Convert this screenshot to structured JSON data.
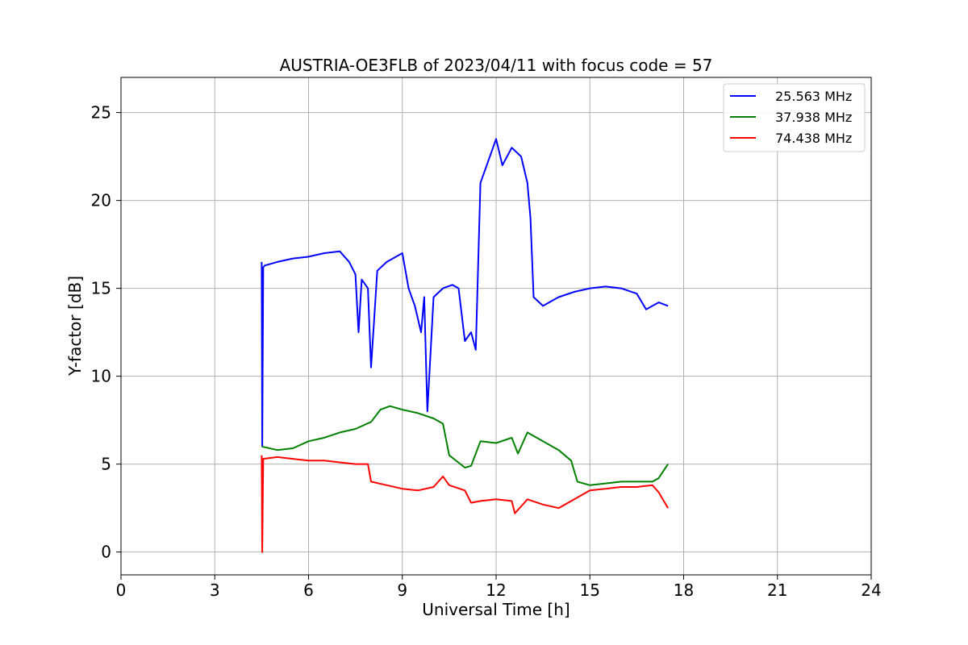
{
  "chart_data": {
    "type": "line",
    "title": "AUSTRIA-OE3FLB of 2023/04/11 with focus code = 57",
    "xlabel": "Universal Time [h]",
    "ylabel": "Y-factor [dB]",
    "xlim": [
      0,
      24
    ],
    "ylim": [
      -1.3,
      27
    ],
    "xticks": [
      0,
      3,
      6,
      9,
      12,
      15,
      18,
      21,
      24
    ],
    "yticks": [
      0,
      5,
      10,
      15,
      20,
      25
    ],
    "grid": true,
    "legend_position": "top-right",
    "series": [
      {
        "name": "25.563 MHz",
        "color": "#0000ff",
        "x": [
          4.5,
          4.52,
          4.55,
          4.6,
          5.0,
          5.5,
          6.0,
          6.5,
          7.0,
          7.3,
          7.5,
          7.6,
          7.7,
          7.9,
          8.0,
          8.2,
          8.5,
          8.8,
          9.0,
          9.2,
          9.4,
          9.6,
          9.7,
          9.8,
          10.0,
          10.3,
          10.6,
          10.8,
          11.0,
          11.2,
          11.35,
          11.5,
          11.8,
          12.0,
          12.2,
          12.5,
          12.8,
          13.0,
          13.1,
          13.2,
          13.5,
          14.0,
          14.5,
          15.0,
          15.5,
          16.0,
          16.5,
          16.8,
          17.0,
          17.2,
          17.5
        ],
        "y": [
          16.5,
          6.0,
          16.2,
          16.3,
          16.5,
          16.7,
          16.8,
          17.0,
          17.1,
          16.5,
          15.8,
          12.5,
          15.5,
          15.0,
          10.5,
          16.0,
          16.5,
          16.8,
          17.0,
          15.0,
          14.0,
          12.5,
          14.5,
          8.0,
          14.5,
          15.0,
          15.2,
          15.0,
          12.0,
          12.5,
          11.5,
          21.0,
          22.5,
          23.5,
          22.0,
          23.0,
          22.5,
          21.0,
          19.0,
          14.5,
          14.0,
          14.5,
          14.8,
          15.0,
          15.1,
          15.0,
          14.7,
          13.8,
          14.0,
          14.2,
          14.0
        ]
      },
      {
        "name": "37.938 MHz",
        "color": "#008000",
        "x": [
          4.5,
          5.0,
          5.5,
          6.0,
          6.5,
          7.0,
          7.5,
          8.0,
          8.3,
          8.6,
          9.0,
          9.5,
          10.0,
          10.3,
          10.5,
          11.0,
          11.2,
          11.5,
          12.0,
          12.5,
          12.7,
          13.0,
          13.3,
          13.6,
          14.0,
          14.4,
          14.6,
          15.0,
          15.5,
          16.0,
          16.5,
          17.0,
          17.2,
          17.5
        ],
        "y": [
          6.0,
          5.8,
          5.9,
          6.3,
          6.5,
          6.8,
          7.0,
          7.4,
          8.1,
          8.3,
          8.1,
          7.9,
          7.6,
          7.3,
          5.5,
          4.8,
          4.9,
          6.3,
          6.2,
          6.5,
          5.6,
          6.8,
          6.5,
          6.2,
          5.8,
          5.2,
          4.0,
          3.8,
          3.9,
          4.0,
          4.0,
          4.0,
          4.2,
          5.0
        ]
      },
      {
        "name": "74.438 MHz",
        "color": "#ff0000",
        "x": [
          4.5,
          4.52,
          4.55,
          5.0,
          5.5,
          6.0,
          6.5,
          7.0,
          7.5,
          7.9,
          8.0,
          8.5,
          9.0,
          9.5,
          10.0,
          10.3,
          10.5,
          11.0,
          11.2,
          11.5,
          12.0,
          12.5,
          12.6,
          13.0,
          13.5,
          14.0,
          14.5,
          15.0,
          15.5,
          16.0,
          16.5,
          17.0,
          17.2,
          17.5
        ],
        "y": [
          5.5,
          0.0,
          5.3,
          5.4,
          5.3,
          5.2,
          5.2,
          5.1,
          5.0,
          5.0,
          4.0,
          3.8,
          3.6,
          3.5,
          3.7,
          4.3,
          3.8,
          3.5,
          2.8,
          2.9,
          3.0,
          2.9,
          2.2,
          3.0,
          2.7,
          2.5,
          3.0,
          3.5,
          3.6,
          3.7,
          3.7,
          3.8,
          3.4,
          2.5
        ]
      }
    ]
  }
}
